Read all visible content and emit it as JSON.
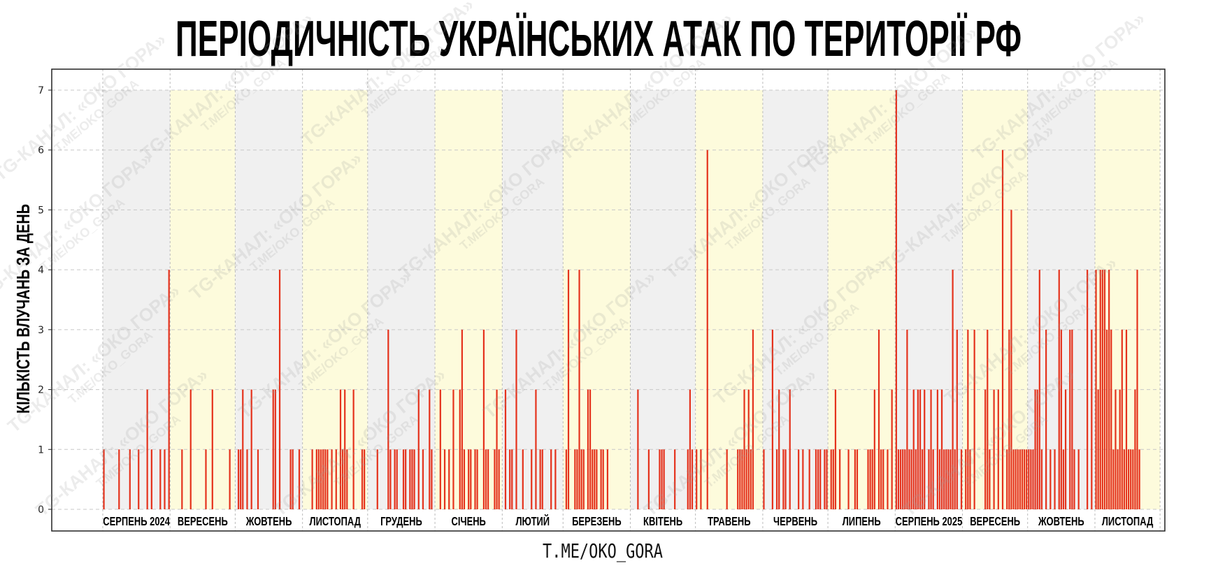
{
  "chart_data": {
    "type": "bar",
    "title": "ПЕРІОДИЧНІСТЬ УКРАЇНСЬКИХ АТАК ПО ТЕРИТОРІЇ РФ",
    "xlabel": "",
    "ylabel": "КІЛЬКІСТЬ ВЛУЧАНЬ ЗА ДЕНЬ",
    "ylim": [
      0,
      7
    ],
    "yticks": [
      0,
      1,
      2,
      3,
      4,
      5,
      6,
      7
    ],
    "grid": true,
    "bar_color": "#e5321c",
    "shade_colors": [
      "#f0f0f0",
      "#fdfbdc"
    ],
    "months": [
      {
        "label": "СЕРПЕНЬ 2024",
        "month": "2024-08",
        "hits": {
          "1": 1,
          "8": 1,
          "13": 1,
          "17": 1,
          "21": 2,
          "23": 1,
          "27": 1,
          "29": 1,
          "31": 4
        }
      },
      {
        "label": "ВЕРЕСЕНЬ",
        "month": "2024-09",
        "hits": {
          "6": 1,
          "10": 2,
          "17": 1,
          "20": 2,
          "28": 1
        }
      },
      {
        "label": "ЖОВТЕНЬ",
        "month": "2024-10",
        "hits": {
          "2": 1,
          "3": 1,
          "4": 2,
          "6": 1,
          "8": 2,
          "11": 1,
          "18": 2,
          "19": 2,
          "21": 4,
          "26": 1,
          "27": 1,
          "30": 1
        }
      },
      {
        "label": "ЛИСТОПАД",
        "month": "2024-11",
        "hits": {
          "5": 1,
          "7": 1,
          "8": 1,
          "9": 1,
          "10": 1,
          "11": 1,
          "12": 1,
          "14": 1,
          "16": 1,
          "18": 2,
          "19": 1,
          "20": 2,
          "21": 1,
          "24": 2,
          "28": 1,
          "29": 1
        }
      },
      {
        "label": "ГРУДЕНЬ",
        "month": "2024-12",
        "hits": {
          "5": 1,
          "10": 3,
          "11": 1,
          "13": 1,
          "14": 1,
          "17": 1,
          "18": 1,
          "20": 1,
          "21": 1,
          "22": 1,
          "24": 2,
          "26": 1,
          "29": 2,
          "30": 1
        }
      },
      {
        "label": "СІЧЕНЬ",
        "month": "2025-01",
        "hits": {
          "3": 2,
          "5": 1,
          "7": 1,
          "9": 2,
          "12": 2,
          "13": 3,
          "14": 1,
          "16": 1,
          "17": 1,
          "19": 1,
          "20": 1,
          "23": 3,
          "24": 1,
          "25": 1,
          "28": 1,
          "29": 2,
          "30": 1
        }
      },
      {
        "label": "ЛЮТИЙ",
        "month": "2025-02",
        "hits": {
          "2": 2,
          "4": 1,
          "5": 1,
          "7": 3,
          "10": 1,
          "14": 1,
          "16": 2,
          "18": 1,
          "19": 1,
          "23": 1,
          "25": 1
        }
      },
      {
        "label": "БЕРЕЗЕНЬ",
        "month": "2025-03",
        "hits": {
          "2": 1,
          "3": 4,
          "6": 1,
          "7": 1,
          "8": 4,
          "9": 1,
          "10": 1,
          "12": 2,
          "13": 2,
          "14": 1,
          "15": 1,
          "16": 1,
          "18": 1,
          "19": 1,
          "21": 1
        }
      },
      {
        "label": "КВІТЕНЬ",
        "month": "2025-04",
        "hits": {
          "4": 2,
          "9": 1,
          "14": 1,
          "15": 1,
          "16": 1,
          "21": 1,
          "27": 1,
          "28": 2,
          "29": 1
        }
      },
      {
        "label": "ТРАВЕНЬ",
        "month": "2025-05",
        "hits": {
          "1": 1,
          "3": 1,
          "6": 6,
          "15": 1,
          "20": 1,
          "21": 1,
          "22": 1,
          "23": 2,
          "24": 1,
          "25": 2,
          "26": 1,
          "27": 3
        }
      },
      {
        "label": "ЧЕРВЕНЬ",
        "month": "2025-06",
        "hits": {
          "1": 1,
          "5": 3,
          "7": 1,
          "8": 2,
          "10": 1,
          "11": 1,
          "13": 2,
          "17": 1,
          "19": 1,
          "22": 1,
          "25": 1,
          "26": 1,
          "27": 1,
          "29": 1,
          "30": 1
        }
      },
      {
        "label": "ЛИПЕНЬ",
        "month": "2025-07",
        "hits": {
          "2": 1,
          "3": 1,
          "4": 2,
          "6": 1,
          "10": 1,
          "13": 1,
          "14": 1,
          "19": 1,
          "20": 1,
          "21": 1,
          "22": 2,
          "24": 3,
          "25": 1,
          "26": 1,
          "28": 1,
          "30": 2
        }
      },
      {
        "label": "СЕРПЕНЬ 2025",
        "month": "2025-08",
        "hits": {
          "1": 7,
          "2": 1,
          "3": 1,
          "4": 1,
          "5": 1,
          "6": 3,
          "7": 1,
          "8": 1,
          "9": 2,
          "10": 1,
          "11": 2,
          "12": 2,
          "13": 1,
          "14": 2,
          "16": 1,
          "17": 2,
          "18": 1,
          "20": 2,
          "21": 1,
          "22": 2,
          "23": 1,
          "24": 1,
          "25": 1,
          "26": 1,
          "27": 4,
          "28": 1,
          "29": 3,
          "31": 1
        }
      },
      {
        "label": "ВЕРЕСЕНЬ",
        "month": "2025-09",
        "hits": {
          "2": 1,
          "3": 3,
          "4": 1,
          "6": 3,
          "11": 2,
          "12": 3,
          "13": 1,
          "15": 2,
          "17": 2,
          "19": 6,
          "21": 1,
          "22": 3,
          "23": 5,
          "24": 1,
          "25": 1,
          "26": 1,
          "27": 1,
          "28": 1,
          "29": 1,
          "30": 1
        }
      },
      {
        "label": "ЖОВТЕНЬ",
        "month": "2025-10",
        "hits": {
          "1": 1,
          "2": 1,
          "3": 1,
          "4": 2,
          "5": 2,
          "6": 4,
          "7": 1,
          "9": 3,
          "11": 1,
          "13": 1,
          "15": 4,
          "16": 3,
          "17": 1,
          "18": 2,
          "20": 3,
          "21": 3,
          "22": 1,
          "24": 1,
          "28": 4,
          "30": 3
        }
      },
      {
        "label": "ЛИСТОПАД",
        "month": "2025-11",
        "hits": {
          "1": 4,
          "2": 2,
          "3": 4,
          "4": 4,
          "5": 4,
          "6": 3,
          "7": 4,
          "8": 3,
          "9": 1,
          "10": 2,
          "11": 1,
          "12": 2,
          "13": 3,
          "14": 1,
          "15": 3,
          "16": 1,
          "17": 1,
          "18": 1,
          "19": 2,
          "20": 4,
          "21": 1
        }
      }
    ]
  },
  "footer": "T.ME/OKO_GORA",
  "watermark": {
    "line1": "TG-КАНАЛ: «ОКО ГОРА»",
    "line2": "T.ME/OKO_GORA"
  }
}
